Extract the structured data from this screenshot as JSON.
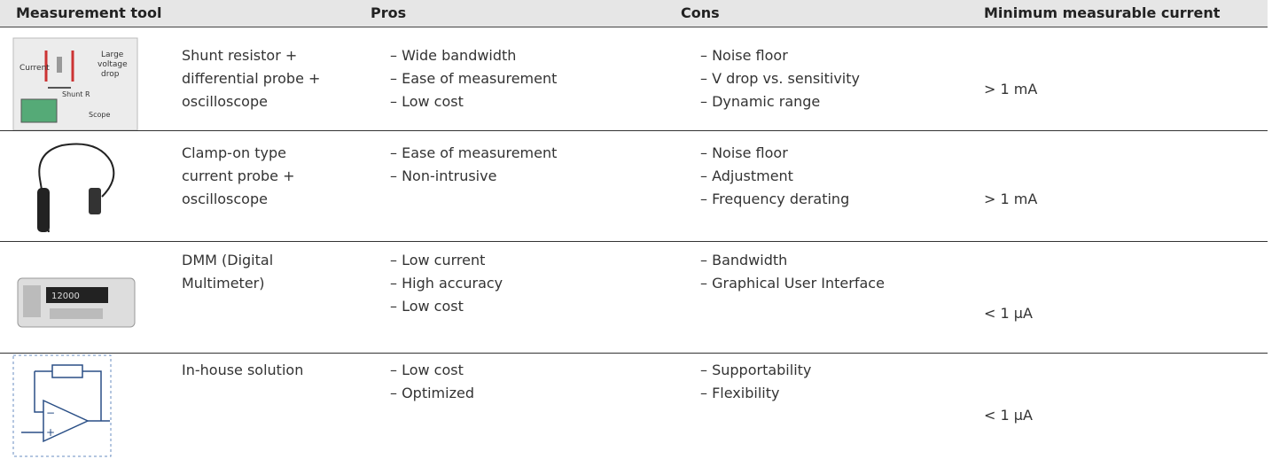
{
  "table": {
    "columns": [
      "Measurement tool",
      "Pros",
      "Cons",
      "Minimum measurable current"
    ],
    "rows": [
      {
        "tool": [
          "Shunt resistor +",
          "differential probe +",
          "oscilloscope"
        ],
        "pros": [
          "– Wide bandwidth",
          "– Ease of measurement",
          "– Low cost"
        ],
        "cons": [
          "– Noise floor",
          "– V drop vs. sensitivity",
          "– Dynamic range"
        ],
        "min_current": "> 1 mA",
        "image_labels": [
          "Current",
          "Large",
          "voltage",
          "drop",
          "Shunt R",
          "Scope"
        ]
      },
      {
        "tool": [
          "Clamp-on type",
          "current probe +",
          "oscilloscope"
        ],
        "pros": [
          "– Ease of measurement",
          "– Non-intrusive"
        ],
        "cons": [
          "– Noise floor",
          "– Adjustment",
          "– Frequency derating"
        ],
        "min_current": "> 1 mA"
      },
      {
        "tool": [
          "DMM (Digital",
          "Multimeter)"
        ],
        "pros": [
          "– Low current",
          "– High accuracy",
          "– Low cost"
        ],
        "cons": [
          "– Bandwidth",
          "– Graphical User Interface"
        ],
        "min_current": "< 1 μA",
        "image_labels": [
          "12000"
        ]
      },
      {
        "tool": [
          "In-house solution"
        ],
        "pros": [
          "– Low cost",
          "– Optimized"
        ],
        "cons": [
          "– Supportability",
          "– Flexibility"
        ],
        "min_current": "< 1 μA",
        "image_labels": [
          "−",
          "+"
        ]
      }
    ]
  }
}
